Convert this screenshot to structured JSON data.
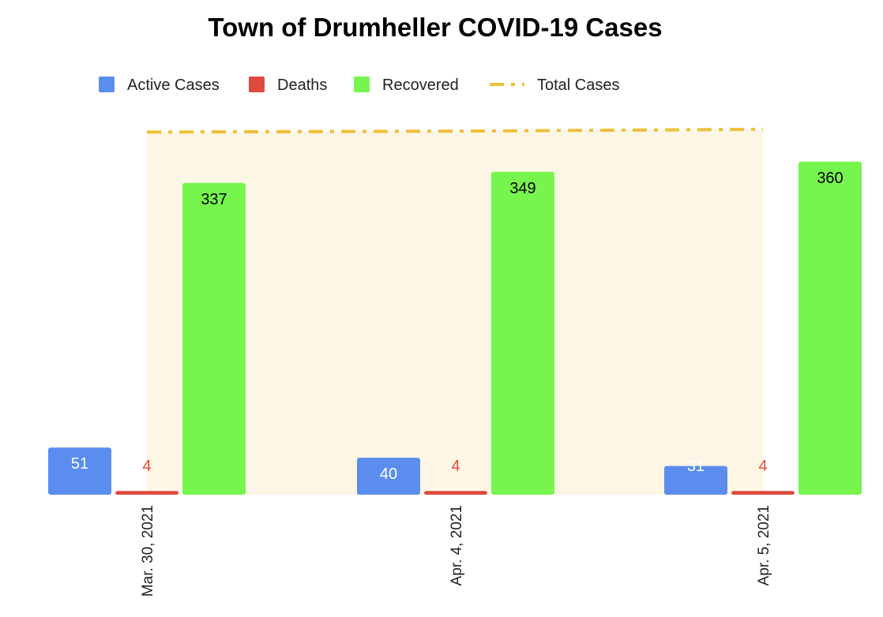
{
  "chart_data": {
    "type": "bar",
    "title": "Town of Drumheller COVID-19 Cases",
    "categories": [
      "Mar. 30, 2021",
      "Apr. 4, 2021",
      "Apr. 5, 2021"
    ],
    "series": [
      {
        "name": "Active Cases",
        "kind": "bar",
        "color": "#5b8def",
        "label_color": "#ffffff",
        "values": [
          51,
          40,
          31
        ]
      },
      {
        "name": "Deaths",
        "kind": "bar",
        "color": "#dc4b3e",
        "label_color": "#dc4b3e",
        "values": [
          4,
          4,
          4
        ]
      },
      {
        "name": "Recovered",
        "kind": "bar",
        "color": "#77f54f",
        "label_color": "#000000",
        "values": [
          337,
          349,
          360
        ]
      },
      {
        "name": "Total Cases",
        "kind": "line",
        "line_style": "dash-dot",
        "area_fill": true,
        "color": "#f0be3a",
        "area_color": "#fdf6e4",
        "values": [
          392,
          393,
          395
        ]
      }
    ],
    "ylim": [
      0,
      400
    ],
    "xlabel": "",
    "ylabel": "",
    "grid": false,
    "legend": "top",
    "x_tick_rotation": "vertical"
  }
}
